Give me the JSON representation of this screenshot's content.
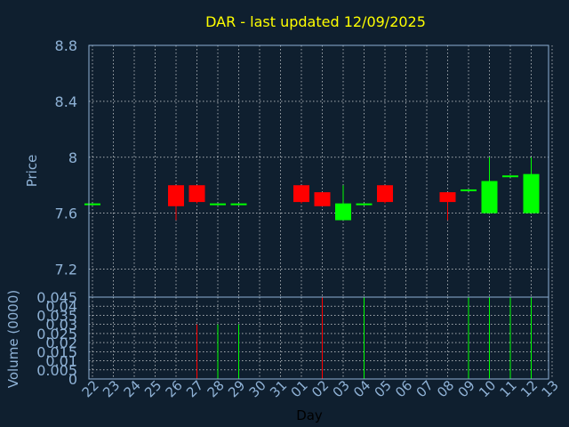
{
  "chart_data": [
    {
      "type": "candlestick",
      "title": "DAR - last updated 12/09/2025",
      "ylabel": "Price",
      "ylim": [
        7.0,
        8.8
      ],
      "yticks": [
        "7.2",
        "7.6",
        "8",
        "8.4",
        "8.8"
      ],
      "grid": true,
      "x": [
        "22",
        "23",
        "24",
        "25",
        "26",
        "27",
        "28",
        "29",
        "30",
        "31",
        "01",
        "02",
        "03",
        "04",
        "05",
        "06",
        "07",
        "08",
        "09",
        "10",
        "11",
        "12",
        "13"
      ],
      "candles": [
        {
          "x": "22",
          "open": 7.67,
          "high": 7.67,
          "low": 7.67,
          "close": 7.67
        },
        {
          "x": "26",
          "open": 7.8,
          "high": 7.8,
          "low": 7.55,
          "close": 7.65
        },
        {
          "x": "27",
          "open": 7.8,
          "high": 7.8,
          "low": 7.67,
          "close": 7.68
        },
        {
          "x": "28",
          "open": 7.67,
          "high": 7.67,
          "low": 7.67,
          "close": 7.67
        },
        {
          "x": "29",
          "open": 7.67,
          "high": 7.67,
          "low": 7.67,
          "close": 7.67
        },
        {
          "x": "01",
          "open": 7.8,
          "high": 7.8,
          "low": 7.67,
          "close": 7.68
        },
        {
          "x": "02",
          "open": 7.75,
          "high": 7.75,
          "low": 7.65,
          "close": 7.65
        },
        {
          "x": "03",
          "open": 7.55,
          "high": 7.8,
          "low": 7.55,
          "close": 7.67
        },
        {
          "x": "04",
          "open": 7.67,
          "high": 7.67,
          "low": 7.67,
          "close": 7.67
        },
        {
          "x": "05",
          "open": 7.8,
          "high": 7.8,
          "low": 7.67,
          "close": 7.68
        },
        {
          "x": "08",
          "open": 7.75,
          "high": 7.75,
          "low": 7.55,
          "close": 7.68
        },
        {
          "x": "09",
          "open": 7.77,
          "high": 7.77,
          "low": 7.77,
          "close": 7.77
        },
        {
          "x": "10",
          "open": 7.6,
          "high": 8.0,
          "low": 7.6,
          "close": 7.83
        },
        {
          "x": "11",
          "open": 7.87,
          "high": 7.87,
          "low": 7.87,
          "close": 7.87
        },
        {
          "x": "12",
          "open": 7.6,
          "high": 8.0,
          "low": 7.6,
          "close": 7.88
        }
      ]
    },
    {
      "type": "bar",
      "ylabel": "Volume (0000)",
      "xlabel": "Day",
      "ylim": [
        0,
        0.045
      ],
      "yticks": [
        "0",
        "0.005",
        "0.01",
        "0.015",
        "0.02",
        "0.025",
        "0.03",
        "0.035",
        "0.04",
        "0.045"
      ],
      "grid": true,
      "x": [
        "22",
        "23",
        "24",
        "25",
        "26",
        "27",
        "28",
        "29",
        "30",
        "31",
        "01",
        "02",
        "03",
        "04",
        "05",
        "06",
        "07",
        "08",
        "09",
        "10",
        "11",
        "12",
        "13"
      ],
      "bars": [
        {
          "x": "27",
          "value": 0.03,
          "direction": "down"
        },
        {
          "x": "28",
          "value": 0.03,
          "direction": "up"
        },
        {
          "x": "29",
          "value": 0.03,
          "direction": "up"
        },
        {
          "x": "02",
          "value": 0.045,
          "direction": "down"
        },
        {
          "x": "04",
          "value": 0.045,
          "direction": "up"
        },
        {
          "x": "09",
          "value": 0.045,
          "direction": "up"
        },
        {
          "x": "10",
          "value": 0.045,
          "direction": "up"
        },
        {
          "x": "11",
          "value": 0.045,
          "direction": "up"
        },
        {
          "x": "12",
          "value": 0.045,
          "direction": "up"
        }
      ]
    }
  ],
  "colors": {
    "background": "#0f1f2f",
    "axis": "#8fb2d6",
    "grid": "#ffffff",
    "title": "#ffff00",
    "up": "#00ff00",
    "down": "#ff0000",
    "xlabel": "#000000"
  }
}
